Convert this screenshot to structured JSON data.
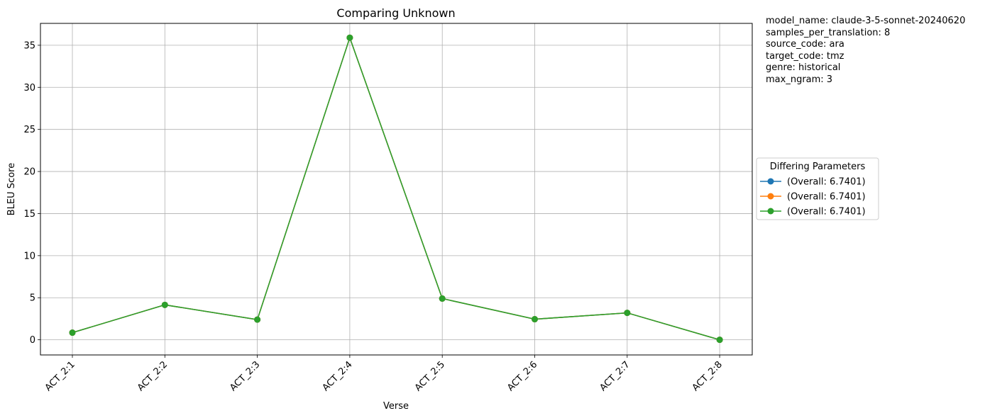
{
  "chart_data": {
    "type": "line",
    "title": "Comparing Unknown",
    "xlabel": "Verse",
    "ylabel": "BLEU Score",
    "categories": [
      "ACT_2:1",
      "ACT_2:2",
      "ACT_2:3",
      "ACT_2:4",
      "ACT_2:5",
      "ACT_2:6",
      "ACT_2:7",
      "ACT_2:8"
    ],
    "ylim": [
      -1.8,
      37.6
    ],
    "yticks": [
      0,
      5,
      10,
      15,
      20,
      25,
      30,
      35
    ],
    "grid": true,
    "legend": {
      "title": "Differing Parameters",
      "placement": "outside-right"
    },
    "series": [
      {
        "name": " (Overall: 6.7401)",
        "color": "#1f77b4",
        "values": [
          0.85,
          4.15,
          2.4,
          35.9,
          4.9,
          2.45,
          3.2,
          0.0
        ]
      },
      {
        "name": " (Overall: 6.7401)",
        "color": "#ff7f0e",
        "values": [
          0.85,
          4.15,
          2.4,
          35.9,
          4.9,
          2.45,
          3.2,
          0.0
        ]
      },
      {
        "name": " (Overall: 6.7401)",
        "color": "#2ca02c",
        "values": [
          0.85,
          4.15,
          2.4,
          35.9,
          4.9,
          2.45,
          3.2,
          0.0
        ]
      }
    ]
  },
  "info": [
    "model_name: claude-3-5-sonnet-20240620",
    "samples_per_translation: 8",
    "source_code: ara",
    "target_code: tmz",
    "genre: historical",
    "max_ngram: 3"
  ]
}
